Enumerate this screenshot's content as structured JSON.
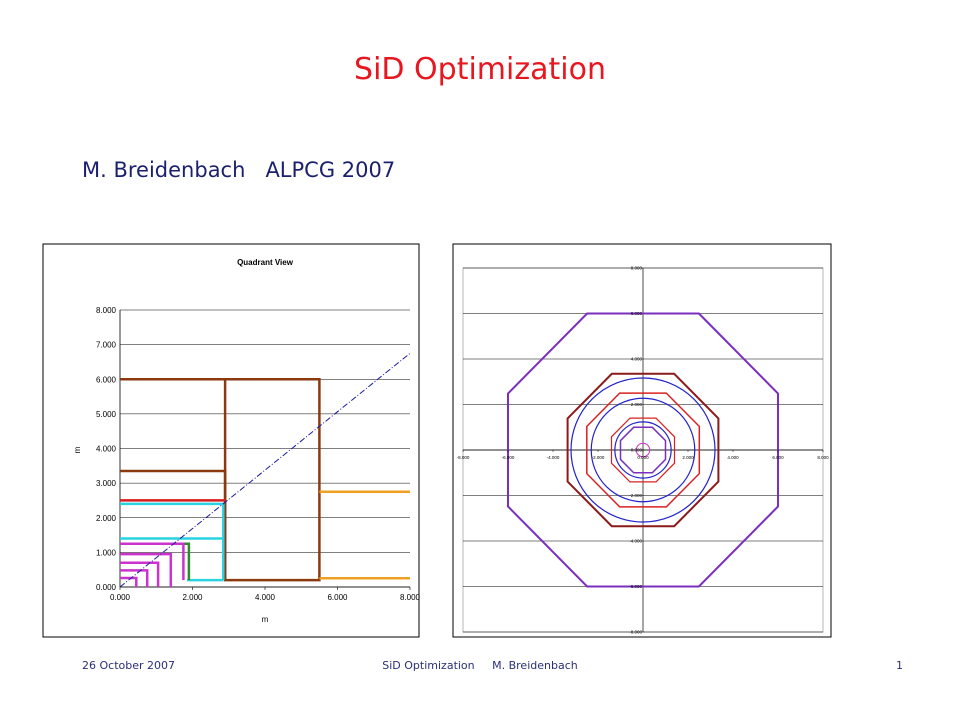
{
  "slide": {
    "title": "SiD Optimization",
    "subtitle": "M. Breidenbach   ALPCG 2007",
    "footer_left": "26 October 2007",
    "footer_center": "SiD Optimization     M. Breidenbach",
    "footer_right": "1"
  },
  "chart_data": [
    {
      "type": "line",
      "title": "Quadrant View",
      "xlabel": "m",
      "ylabel": "m",
      "xlim": [
        0,
        8
      ],
      "ylim": [
        0,
        8
      ],
      "xticks": [
        "0.000",
        "2.000",
        "4.000",
        "6.000",
        "8.000"
      ],
      "yticks": [
        "0.000",
        "1.000",
        "2.000",
        "3.000",
        "4.000",
        "5.000",
        "6.000",
        "7.000",
        "8.000"
      ],
      "grid": true,
      "series": [
        {
          "color": "#8b3a0f",
          "points": [
            [
              0,
              6.0
            ],
            [
              5.5,
              6.0
            ],
            [
              5.5,
              0.2
            ],
            [
              2.9,
              0.2
            ],
            [
              2.9,
              6.0
            ]
          ]
        },
        {
          "color": "#8b3a0f",
          "points": [
            [
              0,
              3.35
            ],
            [
              2.9,
              3.35
            ],
            [
              2.9,
              0.2
            ]
          ]
        },
        {
          "color": "#d91c1c",
          "points": [
            [
              0,
              2.5
            ],
            [
              2.9,
              2.5
            ]
          ]
        },
        {
          "color": "#f0a020",
          "points": [
            [
              5.5,
              0.25
            ],
            [
              8.0,
              0.25
            ]
          ]
        },
        {
          "color": "#f0a020",
          "points": [
            [
              5.5,
              2.75
            ],
            [
              8.0,
              2.75
            ]
          ]
        },
        {
          "color": "#29d4e0",
          "points": [
            [
              0,
              2.4
            ],
            [
              2.85,
              2.4
            ],
            [
              2.85,
              0.2
            ]
          ]
        },
        {
          "color": "#29d4e0",
          "points": [
            [
              0,
              1.4
            ],
            [
              2.85,
              1.4
            ]
          ]
        },
        {
          "color": "#29d4e0",
          "points": [
            [
              1.85,
              0.2
            ],
            [
              2.85,
              0.2
            ]
          ]
        },
        {
          "color": "#2e8b2e",
          "points": [
            [
              0,
              1.25
            ],
            [
              1.9,
              1.25
            ],
            [
              1.9,
              0.2
            ]
          ]
        },
        {
          "color": "#cc33cc",
          "points": [
            [
              0,
              1.25
            ],
            [
              1.75,
              1.25
            ],
            [
              1.75,
              0.2
            ]
          ]
        },
        {
          "color": "#cc33cc",
          "points": [
            [
              0,
              0.95
            ],
            [
              1.4,
              0.95
            ],
            [
              1.4,
              0
            ]
          ]
        },
        {
          "color": "#cc33cc",
          "points": [
            [
              0,
              0.7
            ],
            [
              1.05,
              0.7
            ],
            [
              1.05,
              0
            ]
          ]
        },
        {
          "color": "#cc33cc",
          "points": [
            [
              0,
              0.48
            ],
            [
              0.75,
              0.48
            ],
            [
              0.75,
              0
            ]
          ]
        },
        {
          "color": "#cc33cc",
          "points": [
            [
              0,
              0.26
            ],
            [
              0.45,
              0.26
            ],
            [
              0.45,
              0
            ]
          ]
        },
        {
          "color": "#1a1aa0",
          "dash": "dashdot",
          "points": [
            [
              0,
              0
            ],
            [
              8.0,
              6.75
            ]
          ]
        }
      ]
    },
    {
      "type": "line",
      "title": "",
      "xlim": [
        -8,
        8
      ],
      "ylim": [
        -8,
        8
      ],
      "xticks": [
        "-8.000",
        "-6.000",
        "-4.000",
        "-2.000",
        "0.000",
        "2.000",
        "4.000",
        "6.000",
        "8.000"
      ],
      "yticks": [
        "-8.000",
        "-6.000",
        "-4.000",
        "-2.000",
        "0.000",
        "2.000",
        "4.000",
        "6.000",
        "8.000"
      ],
      "grid": true,
      "shapes": [
        {
          "kind": "octagon",
          "apothem": 6.0,
          "color": "#7b2fbe",
          "width": 2
        },
        {
          "kind": "octagon",
          "apothem": 3.35,
          "color": "#8b1a1a",
          "width": 2
        },
        {
          "kind": "circle",
          "radius": 3.2,
          "color": "#2222cc",
          "width": 1.2
        },
        {
          "kind": "octagon",
          "apothem": 2.5,
          "color": "#d92020",
          "width": 1.5
        },
        {
          "kind": "circle",
          "radius": 2.3,
          "color": "#2222cc",
          "width": 1.2
        },
        {
          "kind": "octagon",
          "apothem": 1.4,
          "color": "#d92020",
          "width": 1.2
        },
        {
          "kind": "circle",
          "radius": 1.25,
          "color": "#2222cc",
          "width": 1.2
        },
        {
          "kind": "octagon",
          "apothem": 1.0,
          "color": "#7b2fbe",
          "width": 1.5
        },
        {
          "kind": "circle",
          "radius": 0.3,
          "color": "#cc33cc",
          "width": 1
        }
      ]
    }
  ]
}
